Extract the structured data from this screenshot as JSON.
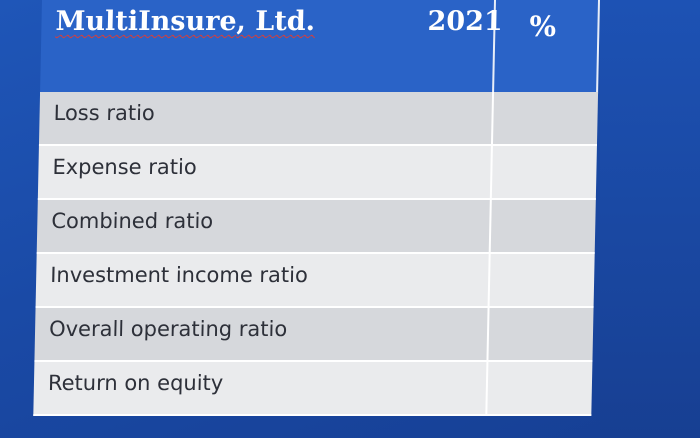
{
  "table": {
    "company_name": "MultiInsure",
    "company_suffix": ", Ltd.",
    "year_header": "2021",
    "percent_header": "%",
    "rows": [
      {
        "label": "Loss ratio"
      },
      {
        "label": "Expense ratio"
      },
      {
        "label": "Combined ratio"
      },
      {
        "label": "Investment income ratio"
      },
      {
        "label": "Overall operating ratio"
      },
      {
        "label": "Return on equity"
      }
    ]
  },
  "colors": {
    "header_blue": "#2a63c7",
    "background_blue": "#1a4aa6",
    "row_shade": "#d6d8dc",
    "row_light": "#eaebed",
    "text_dark": "#2d3039",
    "spellcheck_underline": "#d04040"
  }
}
